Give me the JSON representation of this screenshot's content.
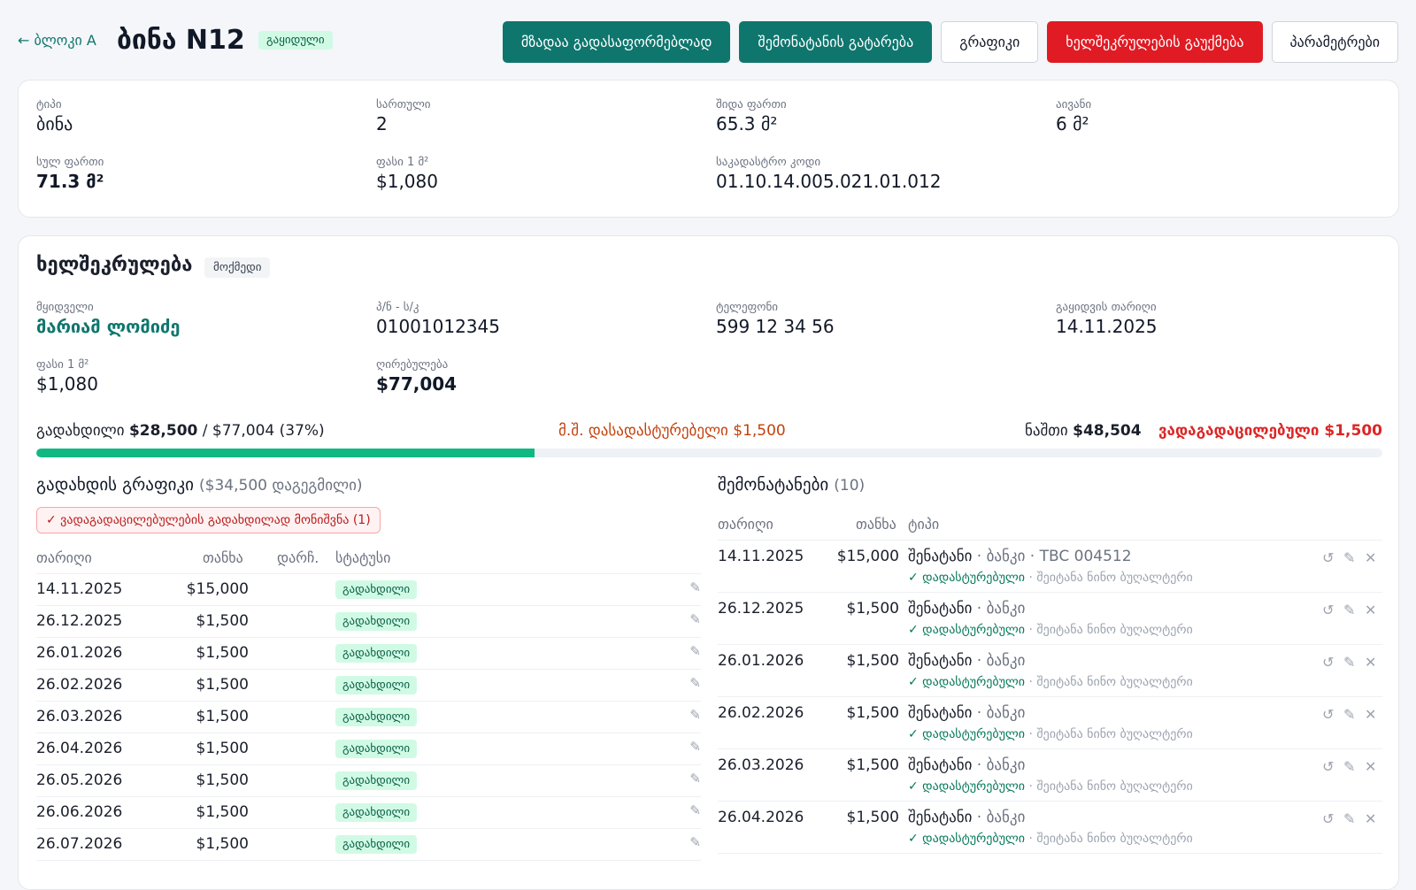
{
  "header": {
    "back_label": "← ბლოკი A",
    "title": "ბინა N12",
    "status_badge": "გაყიდული",
    "actions": [
      {
        "label": "მზადაა გადასაფორმებლად",
        "style": "teal"
      },
      {
        "label": "შემონატანის გატარება",
        "style": "teal"
      },
      {
        "label": "გრაფიკი",
        "style": "plain"
      },
      {
        "label": "ხელშეკრულების გაუქმება",
        "style": "red"
      },
      {
        "label": "პარამეტრები",
        "style": "plain"
      }
    ]
  },
  "property": {
    "type_label": "ტიპი",
    "type": "ბინა",
    "floor_label": "სართული",
    "floor": "2",
    "inner_area_label": "შიდა ფართი",
    "inner_area": "65.3 მ²",
    "balcony_label": "აივანი",
    "balcony": "6 მ²",
    "total_area_label": "სულ ფართი",
    "total_area": "71.3 მ²",
    "price_label": "ფასი 1 მ²",
    "price": "$1,080",
    "cadastral_label": "საკადასტრო კოდი",
    "cadastral": "01.10.14.005.021.01.012"
  },
  "contract": {
    "title": "ხელშეკრულება",
    "status": "მოქმედი",
    "buyer_label": "მყიდველი",
    "buyer": "მარიამ ლომიძე",
    "id_label": "პ/ნ - ს/კ",
    "id": "01001012345",
    "phone_label": "ტელეფონი",
    "phone": "599 12 34 56",
    "sale_date_label": "გაყიდვის თარიღი",
    "sale_date": "14.11.2025",
    "price_label": "ფასი 1 მ²",
    "price": "$1,080",
    "value_label": "ღირებულება",
    "value": "$77,004"
  },
  "payment": {
    "paid_prefix": "გადახდილი",
    "paid": "$28,500",
    "paid_suffix": "/ $77,004 (37%)",
    "pending": "მ.შ. დასადასტურებელი $1,500",
    "remaining_label": "ნაშთი",
    "remaining": "$48,504",
    "overdue": "ვადაგადაცილებული $1,500",
    "progress_fraction": 0.37
  },
  "schedule": {
    "title": "გადახდის გრაფიკი",
    "planned": "($34,500 დაგეგმილი)",
    "warning": "✓ ვადაგადაცილებულების გადახდილად მონიშვნა (1)",
    "headers": [
      "თარიღი",
      "თანხა",
      "დარჩ.",
      "სტატუსი"
    ],
    "rows": [
      {
        "date": "14.11.2025",
        "amount": "$15,000",
        "status": "გადახდილი"
      },
      {
        "date": "26.12.2025",
        "amount": "$1,500",
        "status": "გადახდილი"
      },
      {
        "date": "26.01.2026",
        "amount": "$1,500",
        "status": "გადახდილი"
      },
      {
        "date": "26.02.2026",
        "amount": "$1,500",
        "status": "გადახდილი"
      },
      {
        "date": "26.03.2026",
        "amount": "$1,500",
        "status": "გადახდილი"
      },
      {
        "date": "26.04.2026",
        "amount": "$1,500",
        "status": "გადახდილი"
      },
      {
        "date": "26.05.2026",
        "amount": "$1,500",
        "status": "გადახდილი"
      },
      {
        "date": "26.06.2026",
        "amount": "$1,500",
        "status": "გადახდილი"
      },
      {
        "date": "26.07.2026",
        "amount": "$1,500",
        "status": "გადახდილი"
      }
    ],
    "edit_icon": "✎"
  },
  "incomes": {
    "title": "შემონატანები",
    "count": "(10)",
    "headers": [
      "თარიღი",
      "თანხა",
      "ტიპი"
    ],
    "rows": [
      {
        "date": "14.11.2025",
        "amount": "$15,000",
        "type": "შენატანი",
        "type_extra": "· ბანკი · TBC 004512",
        "confirmed": "✓ დადასტურებული",
        "by": "· შეიტანა ნინო ბუღალტერი"
      },
      {
        "date": "26.12.2025",
        "amount": "$1,500",
        "type": "შენატანი",
        "type_extra": "· ბანკი",
        "confirmed": "✓ დადასტურებული",
        "by": "· შეიტანა ნინო ბუღალტერი"
      },
      {
        "date": "26.01.2026",
        "amount": "$1,500",
        "type": "შენატანი",
        "type_extra": "· ბანკი",
        "confirmed": "✓ დადასტურებული",
        "by": "· შეიტანა ნინო ბუღალტერი"
      },
      {
        "date": "26.02.2026",
        "amount": "$1,500",
        "type": "შენატანი",
        "type_extra": "· ბანკი",
        "confirmed": "✓ დადასტურებული",
        "by": "· შეიტანა ნინო ბუღალტერი"
      },
      {
        "date": "26.03.2026",
        "amount": "$1,500",
        "type": "შენატანი",
        "type_extra": "· ბანკი",
        "confirmed": "✓ დადასტურებული",
        "by": "· შეიტანა ნინო ბუღალტერი"
      },
      {
        "date": "26.04.2026",
        "amount": "$1,500",
        "type": "შენატანი",
        "type_extra": "· ბანკი",
        "confirmed": "✓ დადასტურებული",
        "by": "· შეიტანა ნინო ბუღალტერი"
      }
    ],
    "icons": {
      "undo": "↺",
      "edit": "✎",
      "delete": "✕"
    }
  }
}
